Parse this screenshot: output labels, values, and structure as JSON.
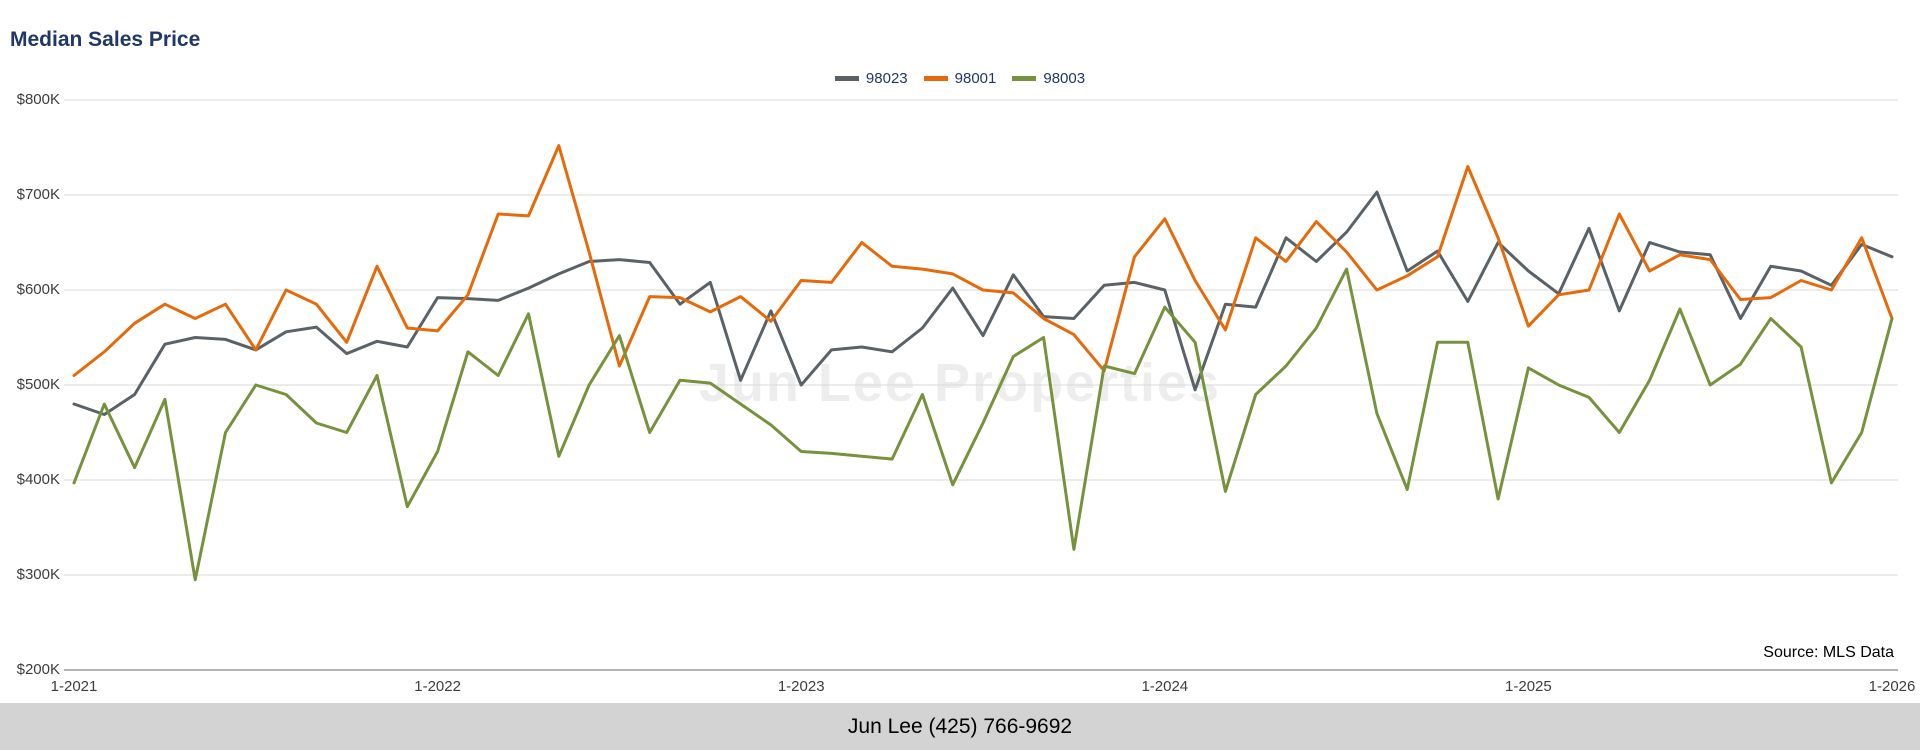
{
  "header": {
    "title": "Median Sales Price"
  },
  "watermark": "Jun Lee Properties",
  "source_note": "Source: MLS Data",
  "footer": {
    "contact": "Jun Lee (425) 766-9692"
  },
  "colors": {
    "title_text": "#1f3864",
    "legend_text": "#1f3864",
    "gridline": "#d9d9d9",
    "axis_line": "#9a9a9a",
    "footer_bg": "#d3d3d3",
    "series_98023": "#5a6268",
    "series_98001": "#e66a0a",
    "series_98003": "#76923c"
  },
  "chart_data": {
    "type": "line",
    "title": "Median Sales Price",
    "x_unit": "month",
    "x_range": [
      "1-2021",
      "1-2026"
    ],
    "months_total": 61,
    "x_ticks": [
      {
        "month_index": 0,
        "label": "1-2021"
      },
      {
        "month_index": 12,
        "label": "1-2022"
      },
      {
        "month_index": 24,
        "label": "1-2023"
      },
      {
        "month_index": 36,
        "label": "1-2024"
      },
      {
        "month_index": 48,
        "label": "1-2025"
      },
      {
        "month_index": 60,
        "label": "1-2026"
      }
    ],
    "y_unit": "USD thousands",
    "ylim": [
      200,
      800
    ],
    "y_ticks": [
      {
        "value": 800,
        "label": "$800K"
      },
      {
        "value": 700,
        "label": "$700K"
      },
      {
        "value": 600,
        "label": "$600K"
      },
      {
        "value": 500,
        "label": "$500K"
      },
      {
        "value": 400,
        "label": "$400K"
      },
      {
        "value": 300,
        "label": "$300K"
      },
      {
        "value": 200,
        "label": "$200K"
      }
    ],
    "grid": true,
    "legend_position": "top-center",
    "series": [
      {
        "name": "98023",
        "color": "#5a6268",
        "values": [
          480,
          469,
          490,
          543,
          550,
          548,
          537,
          556,
          561,
          533,
          546,
          540,
          592,
          591,
          589,
          602,
          617,
          630,
          632,
          629,
          585,
          608,
          505,
          578,
          500,
          537,
          540,
          535,
          560,
          602,
          552,
          616,
          572,
          570,
          605,
          608,
          600,
          495,
          585,
          582,
          655,
          630,
          661,
          703,
          620,
          641,
          588,
          650,
          620,
          596,
          665,
          578,
          650,
          640,
          637,
          570,
          625,
          620,
          605,
          648,
          635
        ]
      },
      {
        "name": "98001",
        "color": "#e66a0a",
        "values": [
          510,
          535,
          565,
          585,
          570,
          585,
          537,
          600,
          585,
          545,
          625,
          560,
          557,
          595,
          680,
          678,
          752,
          640,
          520,
          593,
          592,
          577,
          593,
          567,
          610,
          608,
          650,
          625,
          622,
          617,
          600,
          597,
          570,
          553,
          515,
          635,
          675,
          610,
          558,
          655,
          630,
          672,
          640,
          600,
          615,
          635,
          730,
          655,
          562,
          595,
          600,
          680,
          620,
          637,
          632,
          590,
          592,
          610,
          600,
          655,
          570
        ]
      },
      {
        "name": "98003",
        "color": "#76923c",
        "values": [
          397,
          480,
          413,
          485,
          295,
          450,
          500,
          490,
          460,
          450,
          510,
          372,
          430,
          535,
          510,
          575,
          425,
          500,
          552,
          450,
          505,
          502,
          480,
          458,
          430,
          428,
          425,
          422,
          490,
          395,
          460,
          530,
          550,
          327,
          520,
          512,
          582,
          545,
          388,
          490,
          520,
          560,
          622,
          470,
          390,
          545,
          545,
          380,
          518,
          500,
          487,
          450,
          505,
          580,
          500,
          522,
          570,
          540,
          397,
          450,
          570
        ]
      }
    ]
  }
}
